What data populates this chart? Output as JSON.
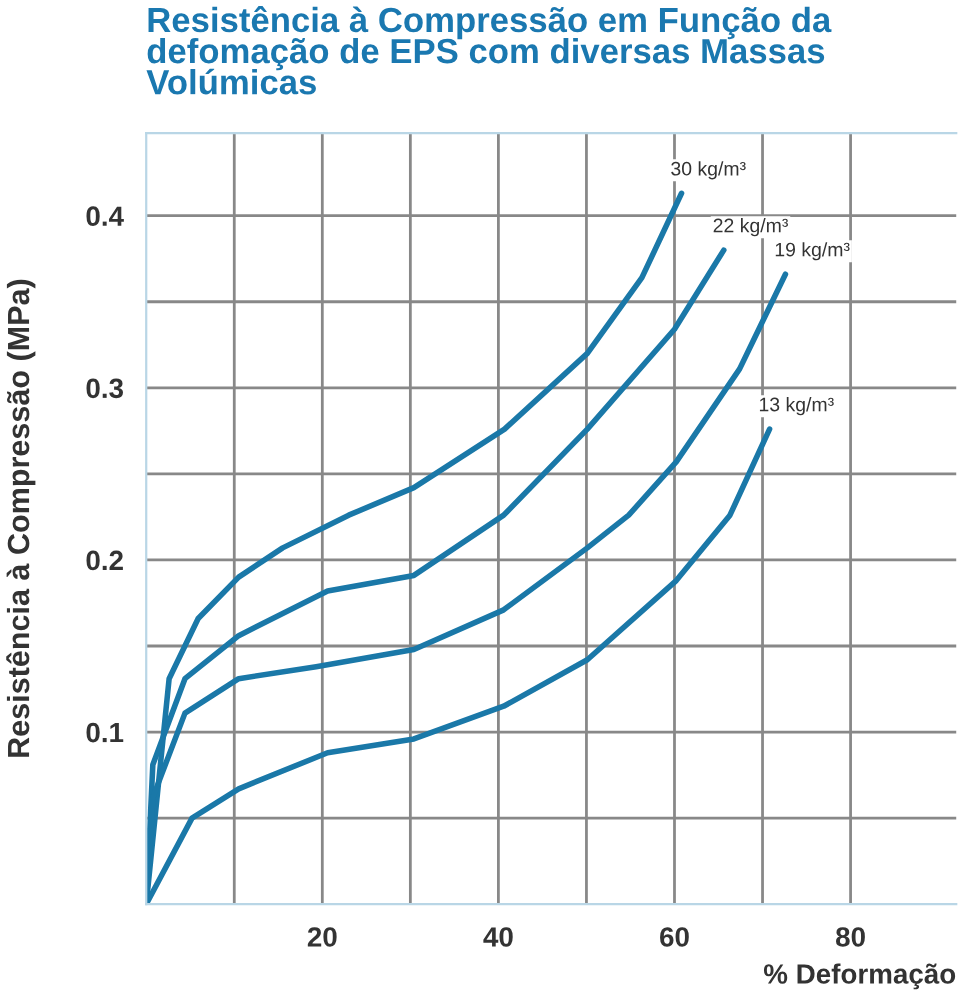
{
  "chart_data": {
    "type": "line",
    "title": "Resistência à Compressão em Função da\ndefomação de EPS com diversas Massas\nVolúmicas",
    "xlabel": "% Deformação",
    "ylabel": "Resistência à Compressão (MPa)",
    "series": [
      {
        "color": "#1a78a8",
        "x": [
          0,
          2.6,
          5.9,
          10.5,
          15.5,
          23,
          30.4,
          40.7,
          50.1,
          56.3,
          60.8
        ],
        "values": [
          0,
          0.131,
          0.166,
          0.19,
          0.207,
          0.226,
          0.242,
          0.276,
          0.32,
          0.364,
          0.413
        ]
      },
      {
        "color": "#1a78a8",
        "x": [
          0,
          0.75,
          4.4,
          10.5,
          20.6,
          30.4,
          40.6,
          50.1,
          60,
          65.6
        ],
        "values": [
          0,
          0.081,
          0.131,
          0.156,
          0.182,
          0.191,
          0.226,
          0.276,
          0.334,
          0.38
        ]
      },
      {
        "color": "#1a78a8",
        "x": [
          0,
          0.75,
          4.4,
          10.5,
          19.3,
          30.4,
          40.6,
          50.1,
          54.8,
          60.2,
          67.4,
          72.6
        ],
        "values": [
          0,
          0.062,
          0.111,
          0.131,
          0.138,
          0.148,
          0.171,
          0.207,
          0.226,
          0.257,
          0.311,
          0.366
        ]
      },
      {
        "color": "#1a78a8",
        "x": [
          0,
          5.2,
          10.5,
          20.6,
          30.4,
          40.6,
          50.1,
          60.2,
          66.3,
          70.8
        ],
        "values": [
          0,
          0.05,
          0.067,
          0.088,
          0.096,
          0.115,
          0.142,
          0.188,
          0.226,
          0.276
        ]
      }
    ],
    "annotations": [
      {
        "text": "30 kg/m³",
        "x": 60.8,
        "y": 0.413
      },
      {
        "text": "22 kg/m³",
        "x": 65.6,
        "y": 0.38
      },
      {
        "text": "19 kg/m³",
        "x": 72.6,
        "y": 0.366
      },
      {
        "text": "13 kg/m³",
        "x": 70.8,
        "y": 0.276
      }
    ],
    "xlim": [
      0,
      92
    ],
    "ylim": [
      0,
      0.448
    ],
    "xticks": [
      {
        "value": 10,
        "label": null
      },
      20,
      {
        "value": 30,
        "label": null
      },
      40,
      {
        "value": 50,
        "label": null
      },
      60,
      {
        "value": 70,
        "label": null
      },
      80
    ],
    "yticks": [
      {
        "value": 0.05,
        "label": null
      },
      0.1,
      {
        "value": 0.15,
        "label": null
      },
      0.2,
      {
        "value": 0.25,
        "label": null
      },
      0.3,
      {
        "value": 0.35,
        "label": null
      },
      0.4
    ],
    "grid": true,
    "legend": false,
    "marker": "none",
    "line_style": "solid"
  }
}
